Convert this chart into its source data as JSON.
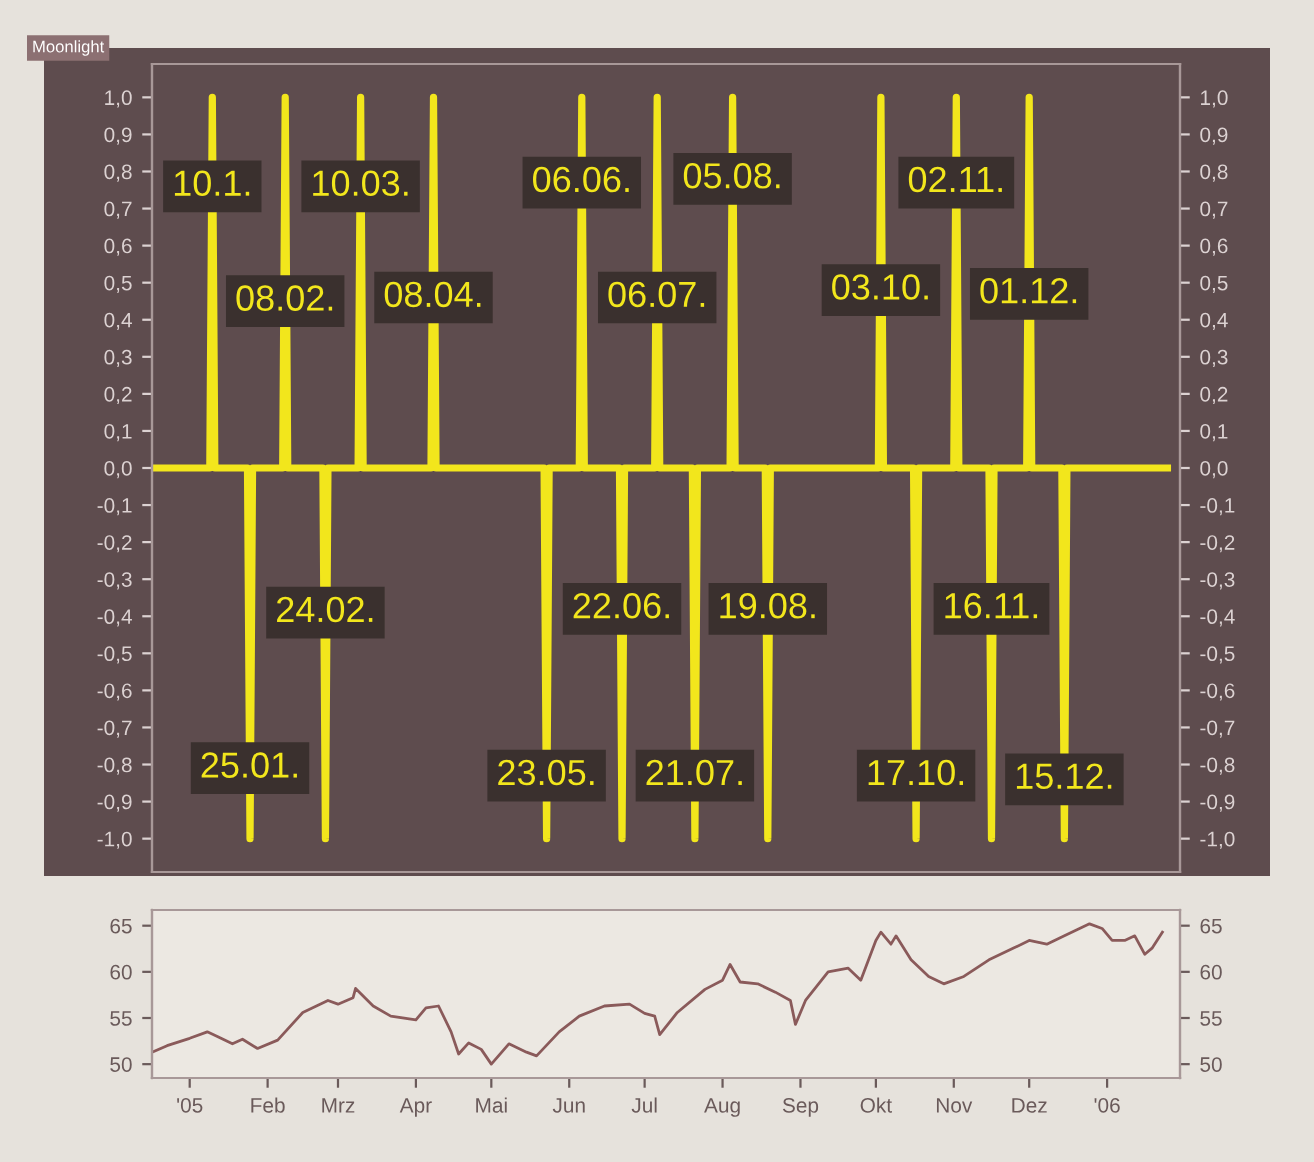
{
  "chart_data": [
    {
      "type": "line",
      "title": "Moonlight",
      "color": "#f2e61c",
      "grid": false,
      "tick_labels": "y",
      "x": [
        "2004-12-17",
        "2005-01-09",
        "2005-01-10",
        "2005-01-11",
        "2005-01-24",
        "2005-01-25",
        "2005-01-26",
        "2005-02-07",
        "2005-02-08",
        "2005-02-09",
        "2005-02-23",
        "2005-02-24",
        "2005-02-25",
        "2005-03-09",
        "2005-03-10",
        "2005-03-11",
        "2005-04-07",
        "2005-04-08",
        "2005-04-09",
        "2005-05-22",
        "2005-05-23",
        "2005-05-24",
        "2005-06-05",
        "2005-06-06",
        "2005-06-07",
        "2005-06-21",
        "2005-06-22",
        "2005-06-23",
        "2005-07-05",
        "2005-07-06",
        "2005-07-07",
        "2005-07-20",
        "2005-07-21",
        "2005-07-22",
        "2005-08-04",
        "2005-08-05",
        "2005-08-06",
        "2005-08-18",
        "2005-08-19",
        "2005-08-20",
        "2005-10-02",
        "2005-10-03",
        "2005-10-04",
        "2005-10-16",
        "2005-10-17",
        "2005-10-18",
        "2005-11-01",
        "2005-11-02",
        "2005-11-03",
        "2005-11-15",
        "2005-11-16",
        "2005-11-17",
        "2005-11-30",
        "2005-12-01",
        "2005-12-02",
        "2005-12-14",
        "2005-12-15",
        "2005-12-16",
        "2006-01-25"
      ],
      "values": [
        0,
        0,
        1,
        0,
        0,
        -1,
        0,
        0,
        1,
        0,
        0,
        -1,
        0,
        0,
        1,
        0,
        0,
        1,
        0,
        0,
        -1,
        0,
        0,
        1,
        0,
        0,
        -1,
        0,
        0,
        1,
        0,
        0,
        -1,
        0,
        0,
        1,
        0,
        0,
        -1,
        0,
        0,
        1,
        0,
        0,
        -1,
        0,
        0,
        1,
        0,
        0,
        -1,
        0,
        0,
        1,
        0,
        0,
        -1,
        0,
        0
      ],
      "xlim": [
        "2004-12-17",
        "2006-01-30"
      ],
      "ylim": [
        -1.09,
        1.09
      ],
      "yticks": [
        {
          "value": 1.0,
          "label": "1,0"
        },
        {
          "value": 0.9,
          "label": "0,9"
        },
        {
          "value": 0.8,
          "label": "0,8"
        },
        {
          "value": 0.7,
          "label": "0,7"
        },
        {
          "value": 0.6,
          "label": "0,6"
        },
        {
          "value": 0.5,
          "label": "0,5"
        },
        {
          "value": 0.4,
          "label": "0,4"
        },
        {
          "value": 0.3,
          "label": "0,3"
        },
        {
          "value": 0.2,
          "label": "0,2"
        },
        {
          "value": 0.1,
          "label": "0,1"
        },
        {
          "value": 0.0,
          "label": "0,0"
        },
        {
          "value": -0.1,
          "label": "-0,1"
        },
        {
          "value": -0.2,
          "label": "-0,2"
        },
        {
          "value": -0.3,
          "label": "-0,3"
        },
        {
          "value": -0.4,
          "label": "-0,4"
        },
        {
          "value": -0.5,
          "label": "-0,5"
        },
        {
          "value": -0.6,
          "label": "-0,6"
        },
        {
          "value": -0.7,
          "label": "-0,7"
        },
        {
          "value": -0.8,
          "label": "-0,8"
        },
        {
          "value": -0.9,
          "label": "-0,9"
        },
        {
          "value": -1.0,
          "label": "-1,0"
        }
      ],
      "y2lim": [
        -1.09,
        1.09
      ],
      "y2ticks": [
        {
          "value": 1.0,
          "label": "1,0"
        },
        {
          "value": 0.9,
          "label": "0,9"
        },
        {
          "value": 0.8,
          "label": "0,8"
        },
        {
          "value": 0.7,
          "label": "0,7"
        },
        {
          "value": 0.6,
          "label": "0,6"
        },
        {
          "value": 0.5,
          "label": "0,5"
        },
        {
          "value": 0.4,
          "label": "0,4"
        },
        {
          "value": 0.3,
          "label": "0,3"
        },
        {
          "value": 0.2,
          "label": "0,2"
        },
        {
          "value": 0.1,
          "label": "0,1"
        },
        {
          "value": 0.0,
          "label": "0,0"
        },
        {
          "value": -0.1,
          "label": "-0,1"
        },
        {
          "value": -0.2,
          "label": "-0,2"
        },
        {
          "value": -0.3,
          "label": "-0,3"
        },
        {
          "value": -0.4,
          "label": "-0,4"
        },
        {
          "value": -0.5,
          "label": "-0,5"
        },
        {
          "value": -0.6,
          "label": "-0,6"
        },
        {
          "value": -0.7,
          "label": "-0,7"
        },
        {
          "value": -0.8,
          "label": "-0,8"
        },
        {
          "value": -0.9,
          "label": "-0,9"
        },
        {
          "value": -1.0,
          "label": "-1,0"
        }
      ],
      "annotations": [
        {
          "text": "10.1.",
          "x": "2005-01-10",
          "y": 0.76
        },
        {
          "text": "08.02.",
          "x": "2005-02-08",
          "y": 0.45
        },
        {
          "text": "10.03.",
          "x": "2005-03-10",
          "y": 0.76
        },
        {
          "text": "08.04.",
          "x": "2005-04-08",
          "y": 0.46
        },
        {
          "text": "06.06.",
          "x": "2005-06-06",
          "y": 0.77
        },
        {
          "text": "06.07.",
          "x": "2005-07-06",
          "y": 0.46
        },
        {
          "text": "05.08.",
          "x": "2005-08-05",
          "y": 0.78
        },
        {
          "text": "03.10.",
          "x": "2005-10-03",
          "y": 0.48
        },
        {
          "text": "02.11.",
          "x": "2005-11-02",
          "y": 0.77
        },
        {
          "text": "01.12.",
          "x": "2005-12-01",
          "y": 0.47
        },
        {
          "text": "25.01.",
          "x": "2005-01-25",
          "y": -0.81
        },
        {
          "text": "24.02.",
          "x": "2005-02-24",
          "y": -0.39
        },
        {
          "text": "23.05.",
          "x": "2005-05-23",
          "y": -0.83
        },
        {
          "text": "22.06.",
          "x": "2005-06-22",
          "y": -0.38
        },
        {
          "text": "21.07.",
          "x": "2005-07-21",
          "y": -0.83
        },
        {
          "text": "19.08.",
          "x": "2005-08-19",
          "y": -0.38
        },
        {
          "text": "17.10.",
          "x": "2005-10-17",
          "y": -0.83
        },
        {
          "text": "16.11.",
          "x": "2005-11-16",
          "y": -0.38
        },
        {
          "text": "15.12.",
          "x": "2005-12-15",
          "y": -0.84
        }
      ]
    },
    {
      "type": "line",
      "color": "#8a5a5a",
      "grid": false,
      "x": [
        "2004-12-17",
        "2004-12-23",
        "2005-01-01",
        "2005-01-08",
        "2005-01-12",
        "2005-01-18",
        "2005-01-22",
        "2005-01-28",
        "2005-02-05",
        "2005-02-15",
        "2005-02-25",
        "2005-03-01",
        "2005-03-07",
        "2005-03-08",
        "2005-03-15",
        "2005-03-22",
        "2005-04-01",
        "2005-04-05",
        "2005-04-10",
        "2005-04-15",
        "2005-04-18",
        "2005-04-22",
        "2005-04-27",
        "2005-05-01",
        "2005-05-08",
        "2005-05-15",
        "2005-05-19",
        "2005-05-28",
        "2005-06-05",
        "2005-06-15",
        "2005-06-25",
        "2005-07-01",
        "2005-07-05",
        "2005-07-07",
        "2005-07-14",
        "2005-07-25",
        "2005-08-01",
        "2005-08-04",
        "2005-08-08",
        "2005-08-15",
        "2005-08-22",
        "2005-08-28",
        "2005-08-30",
        "2005-09-03",
        "2005-09-12",
        "2005-09-20",
        "2005-09-25",
        "2005-10-01",
        "2005-10-03",
        "2005-10-07",
        "2005-10-09",
        "2005-10-15",
        "2005-10-22",
        "2005-10-28",
        "2005-11-05",
        "2005-11-15",
        "2005-11-25",
        "2005-12-01",
        "2005-12-08",
        "2005-12-15",
        "2005-12-25",
        "2005-12-30",
        "2006-01-03",
        "2006-01-08",
        "2006-01-12",
        "2006-01-16",
        "2006-01-19",
        "2006-01-23"
      ],
      "values": [
        51.3,
        52.0,
        52.8,
        53.5,
        53.0,
        52.2,
        52.7,
        51.7,
        52.6,
        55.6,
        56.9,
        56.5,
        57.2,
        58.2,
        56.3,
        55.2,
        54.8,
        56.1,
        56.3,
        53.5,
        51.1,
        52.3,
        51.6,
        50.0,
        52.2,
        51.3,
        50.9,
        53.5,
        55.2,
        56.3,
        56.5,
        55.5,
        55.2,
        53.2,
        55.6,
        58.1,
        59.1,
        60.8,
        58.9,
        58.7,
        57.8,
        56.9,
        54.3,
        56.9,
        60.0,
        60.4,
        59.1,
        63.4,
        64.3,
        63.0,
        63.9,
        61.3,
        59.5,
        58.7,
        59.5,
        61.3,
        62.6,
        63.4,
        63.0,
        63.9,
        65.2,
        64.7,
        63.4,
        63.4,
        63.9,
        61.9,
        62.6,
        64.3
      ],
      "xlim": [
        "2004-12-17",
        "2006-01-30"
      ],
      "xticks": [
        {
          "value": "2005-01-01",
          "label": "'05"
        },
        {
          "value": "2005-02-01",
          "label": "Feb"
        },
        {
          "value": "2005-03-01",
          "label": "Mrz"
        },
        {
          "value": "2005-04-01",
          "label": "Apr"
        },
        {
          "value": "2005-05-01",
          "label": "Mai"
        },
        {
          "value": "2005-06-01",
          "label": "Jun"
        },
        {
          "value": "2005-07-01",
          "label": "Jul"
        },
        {
          "value": "2005-08-01",
          "label": "Aug"
        },
        {
          "value": "2005-09-01",
          "label": "Sep"
        },
        {
          "value": "2005-10-01",
          "label": "Okt"
        },
        {
          "value": "2005-11-01",
          "label": "Nov"
        },
        {
          "value": "2005-12-01",
          "label": "Dez"
        },
        {
          "value": "2006-01-01",
          "label": "'06"
        }
      ],
      "ylim": [
        48.5,
        66.7
      ],
      "yticks": [
        50,
        55,
        60,
        65
      ],
      "y2lim": [
        48.5,
        66.7
      ],
      "y2ticks": [
        50,
        55,
        60,
        65
      ]
    }
  ]
}
